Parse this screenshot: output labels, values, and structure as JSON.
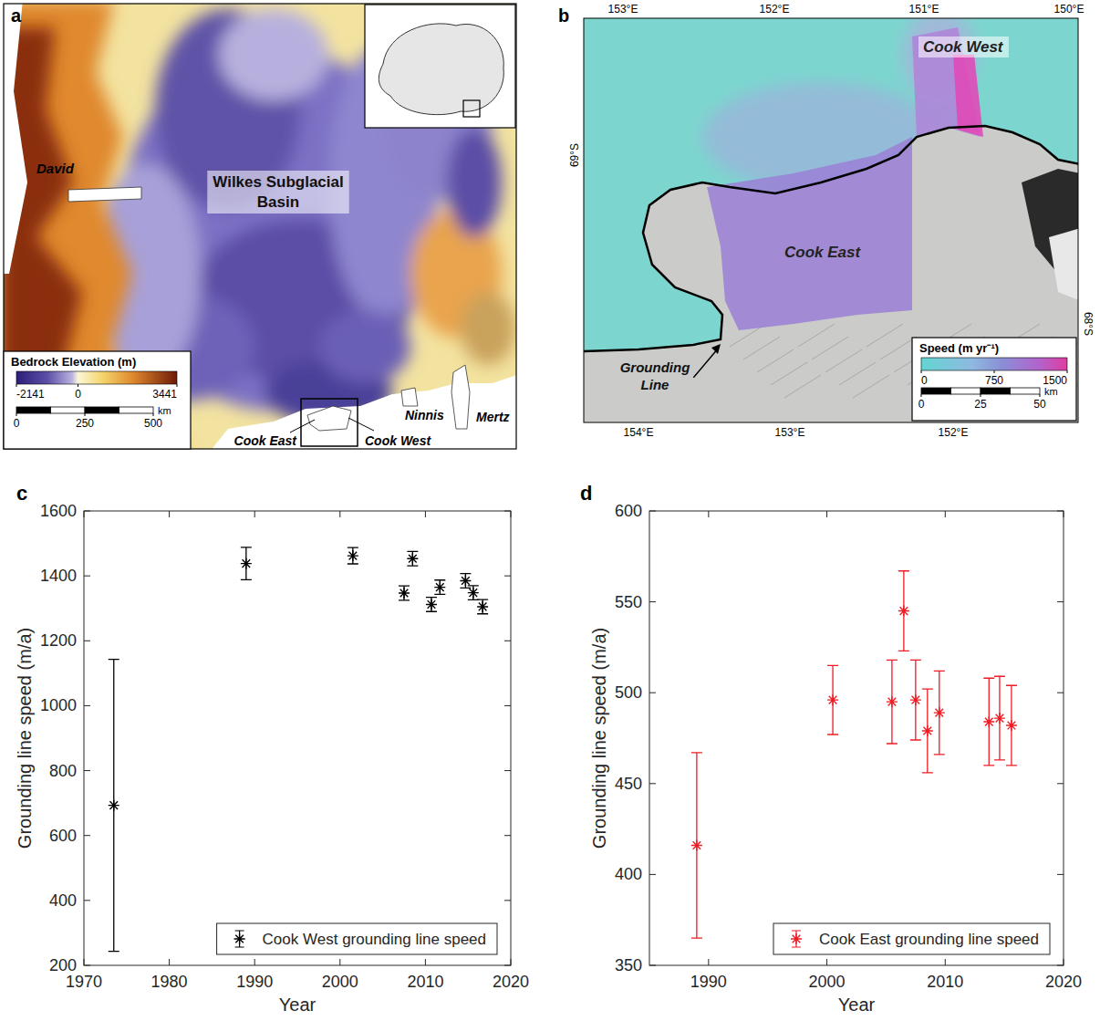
{
  "maps": [
    {
      "panel": "a",
      "labels": [
        "David",
        "Wilkes Subglacial Basin",
        "Cook East",
        "Cook West",
        "Ninnis",
        "Mertz"
      ],
      "colorbar": {
        "title": "Bedrock Elevation (m)",
        "range": [
          -2141,
          3441
        ],
        "ticks": [
          -2141,
          0,
          3441
        ]
      },
      "scale_bar": {
        "ticks": [
          0,
          250,
          500
        ],
        "unit": "km"
      }
    },
    {
      "panel": "b",
      "labels": [
        "Cook West",
        "Cook East",
        "Grounding Line"
      ],
      "colorbar": {
        "title": "Speed (m yr⁻¹)",
        "range": [
          0,
          1500
        ],
        "ticks": [
          0,
          750,
          1500
        ]
      },
      "scale_bar": {
        "ticks": [
          0,
          25,
          50
        ],
        "unit": "km"
      },
      "top_labels": [
        "153°E",
        "152°E",
        "151°E",
        "150°E"
      ],
      "bottom_labels": [
        "154°E",
        "153°E",
        "152°E"
      ],
      "left_labels": [
        "69°S"
      ],
      "right_labels": [
        "68°S"
      ]
    }
  ],
  "chart_data": [
    {
      "panel": "c",
      "type": "scatter",
      "x": [
        1973.5,
        1989,
        2001.5,
        2007.5,
        2008.5,
        2010.7,
        2011.7,
        2014.7,
        2015.6,
        2016.7
      ],
      "series": [
        {
          "name": "Cook West grounding line speed",
          "color": "#000000",
          "marker": "asterisk",
          "values": [
            693,
            1438,
            1462,
            1347,
            1453,
            1312,
            1365,
            1385,
            1348,
            1305
          ],
          "errors": [
            450,
            50,
            25,
            22,
            22,
            22,
            22,
            22,
            22,
            22
          ]
        }
      ],
      "xlim": [
        1970,
        2020
      ],
      "xticks": [
        1970,
        1980,
        1990,
        2000,
        2010,
        2020
      ],
      "ylim": [
        200,
        1600
      ],
      "yticks": [
        200,
        400,
        600,
        800,
        1000,
        1200,
        1400,
        1600
      ],
      "x_label": "Year",
      "y_label": "Grounding line speed (m/a)",
      "grid": false,
      "legend": "lower right"
    },
    {
      "panel": "d",
      "type": "scatter",
      "x": [
        1989,
        2000.5,
        2005.5,
        2006.5,
        2007.5,
        2008.5,
        2009.5,
        2013.7,
        2014.6,
        2015.6
      ],
      "series": [
        {
          "name": "Cook East grounding line speed",
          "color": "#ee1c25",
          "marker": "asterisk",
          "values": [
            416,
            496,
            495,
            545,
            496,
            479,
            489,
            484,
            486,
            482
          ],
          "errors": [
            51,
            19,
            23,
            22,
            22,
            23,
            23,
            24,
            23,
            22
          ]
        }
      ],
      "xlim": [
        1985,
        2020
      ],
      "xticks": [
        1990,
        2000,
        2010,
        2020
      ],
      "ylim": [
        350,
        600
      ],
      "yticks": [
        350,
        400,
        450,
        500,
        550,
        600
      ],
      "x_label": "Year",
      "y_label": "Grounding line speed (m/a)",
      "grid": false,
      "legend": "lower right"
    }
  ]
}
